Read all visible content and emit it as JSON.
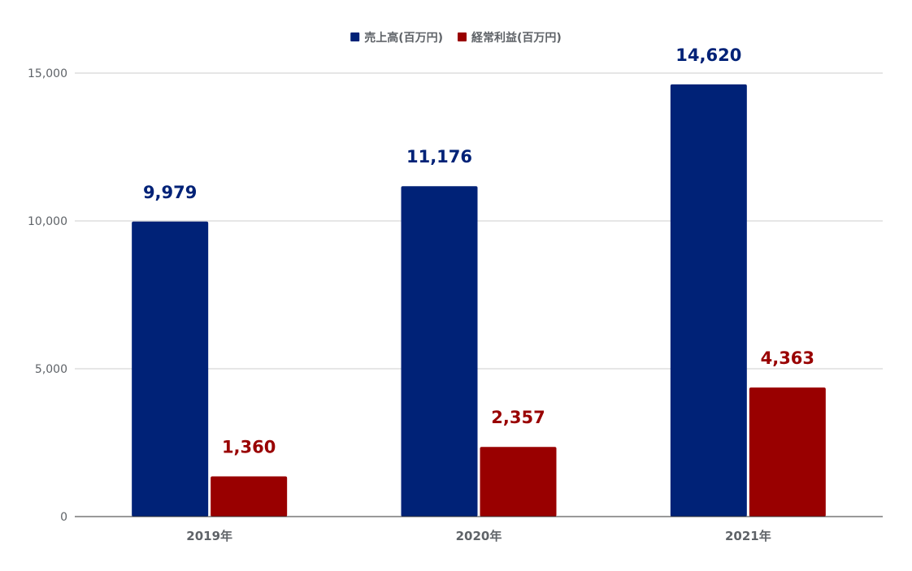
{
  "chart_data": {
    "type": "bar",
    "categories": [
      "2019年",
      "2020年",
      "2021年"
    ],
    "series": [
      {
        "name": "売上高(百万円)",
        "values": [
          9979,
          11176,
          14620
        ],
        "labels": [
          "9,979",
          "11,176",
          "14,620"
        ],
        "color": "#002277"
      },
      {
        "name": "経常利益(百万円)",
        "values": [
          1360,
          2357,
          4363
        ],
        "labels": [
          "1,360",
          "2,357",
          "4,363"
        ],
        "color": "#990000"
      }
    ],
    "yticks": [
      0,
      5000,
      10000,
      15000
    ],
    "ytick_labels": [
      "0",
      "5,000",
      "10,000",
      "15,000"
    ],
    "ylim": [
      0,
      16000
    ],
    "grid": true,
    "legend_position": "top",
    "title": "",
    "xlabel": "",
    "ylabel": ""
  }
}
